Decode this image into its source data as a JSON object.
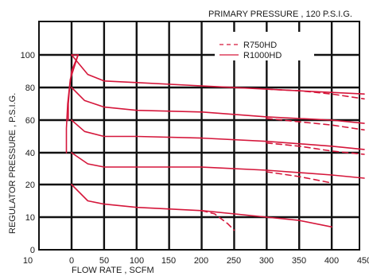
{
  "chart_data": {
    "type": "line",
    "title": "PRIMARY PRESSURE , 120 P.S.I.G.",
    "xlabel": "FLOW RATE , SCFM",
    "ylabel": "REGULATOR PRESSURE , P.S.I.G.",
    "x_tick_labels": [
      "10",
      "0",
      "50",
      "100",
      "150",
      "200",
      "250",
      "300",
      "350",
      "400",
      "450"
    ],
    "y_tick_labels": [
      "0",
      "10",
      "20",
      "40",
      "60",
      "80",
      "100"
    ],
    "grid": true,
    "legend_position": "top-right",
    "colors": {
      "series": "#d5173b",
      "grid": "#111111",
      "background": "#ffffff"
    },
    "legend": [
      {
        "label": "R750HD",
        "style": "dashed"
      },
      {
        "label": "R1000HD",
        "style": "solid"
      }
    ],
    "series": [
      {
        "model": "R1000HD",
        "start": 100,
        "points": [
          [
            10,
            100
          ],
          [
            0,
            100
          ],
          [
            25,
            88
          ],
          [
            50,
            84
          ],
          [
            100,
            83
          ],
          [
            200,
            81
          ],
          [
            300,
            79
          ],
          [
            400,
            77
          ],
          [
            450,
            76
          ]
        ]
      },
      {
        "model": "R1000HD",
        "start": 80,
        "points": [
          [
            0,
            80
          ],
          [
            20,
            72
          ],
          [
            50,
            68
          ],
          [
            100,
            66
          ],
          [
            200,
            65
          ],
          [
            300,
            62
          ],
          [
            400,
            60
          ],
          [
            450,
            58
          ]
        ]
      },
      {
        "model": "R1000HD",
        "start": 60,
        "points": [
          [
            0,
            60
          ],
          [
            20,
            53
          ],
          [
            50,
            50
          ],
          [
            100,
            50
          ],
          [
            200,
            49
          ],
          [
            300,
            47
          ],
          [
            400,
            44
          ],
          [
            450,
            42
          ]
        ]
      },
      {
        "model": "R1000HD",
        "start": 40,
        "points": [
          [
            0,
            40
          ],
          [
            25,
            33
          ],
          [
            50,
            31
          ],
          [
            100,
            31
          ],
          [
            200,
            31
          ],
          [
            300,
            29
          ],
          [
            400,
            26
          ],
          [
            450,
            24
          ]
        ]
      },
      {
        "model": "R1000HD",
        "start": 20,
        "points": [
          [
            0,
            20
          ],
          [
            25,
            15
          ],
          [
            50,
            14
          ],
          [
            100,
            13
          ],
          [
            200,
            12
          ],
          [
            300,
            10
          ],
          [
            350,
            9
          ],
          [
            400,
            7
          ]
        ]
      },
      {
        "model": "R1000HD",
        "start": "100-to-60",
        "points": [
          [
            10,
            100
          ],
          [
            0,
            90
          ],
          [
            -3,
            80
          ],
          [
            -5,
            70
          ],
          [
            -5,
            60
          ]
        ]
      },
      {
        "model": "R1000HD",
        "start": "100-to-40",
        "points": [
          [
            10,
            100
          ],
          [
            -2,
            85
          ],
          [
            -6,
            70
          ],
          [
            -8,
            55
          ],
          [
            -8,
            40
          ]
        ]
      },
      {
        "model": "R750HD",
        "start": 80,
        "points": [
          [
            300,
            79
          ],
          [
            350,
            78
          ],
          [
            400,
            76
          ],
          [
            450,
            73
          ]
        ]
      },
      {
        "model": "R750HD",
        "start": 60,
        "points": [
          [
            300,
            61
          ],
          [
            350,
            59
          ],
          [
            400,
            57
          ],
          [
            450,
            54
          ]
        ]
      },
      {
        "model": "R750HD",
        "start": 40,
        "points": [
          [
            300,
            46
          ],
          [
            350,
            44
          ],
          [
            400,
            41
          ],
          [
            450,
            39
          ]
        ]
      },
      {
        "model": "R750HD",
        "start": 20,
        "points": [
          [
            300,
            28
          ],
          [
            350,
            25
          ],
          [
            400,
            21
          ]
        ]
      },
      {
        "model": "R750HD",
        "start": 0,
        "points": [
          [
            200,
            12
          ],
          [
            220,
            11
          ],
          [
            240,
            8
          ],
          [
            250,
            6
          ]
        ]
      }
    ]
  }
}
